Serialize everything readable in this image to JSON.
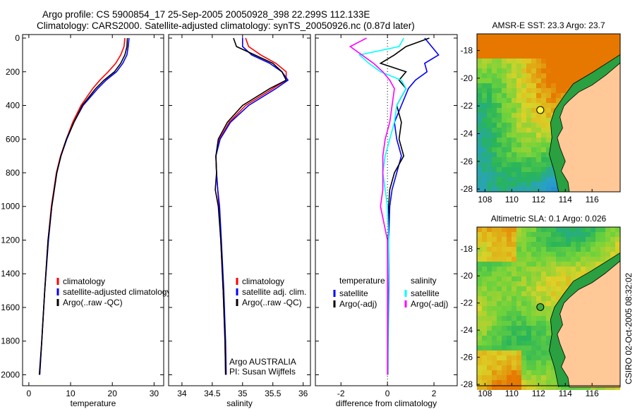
{
  "title_line1": "Argo profile: CS 5900854_17 25-Sep-2005 20050928_398 22.299S 112.133E",
  "title_line2": "Climatology: CARS2000. Satellite-adjusted climatology: synTS_20050926.nc (0.87d later)",
  "side_label": "CSIRO 02-Oct-2005 08:32:02",
  "colors": {
    "climatology": "#ff0000",
    "satellite": "#0000ff",
    "argo": "#000000",
    "sal_sat": "#00ffff",
    "sal_argo": "#ff00ff",
    "land": "#ffc896"
  },
  "chart_data": [
    {
      "type": "line",
      "id": "temperature",
      "xlabel": "temperature",
      "xlim": [
        -1.5,
        32.3
      ],
      "ylim": [
        2065,
        -21
      ],
      "xticks": [
        0,
        10,
        20,
        30
      ],
      "yticks": [
        0,
        200,
        400,
        600,
        800,
        1000,
        1200,
        1400,
        1600,
        1800,
        2000
      ],
      "legend": [
        "climatology",
        "satellite-adjusted climatology",
        "Argo(..raw -QC)"
      ],
      "legend_position": "lower-right",
      "depth": [
        0,
        50,
        100,
        150,
        200,
        250,
        300,
        400,
        500,
        600,
        700,
        800,
        1000,
        1200,
        1500,
        1800,
        2000
      ],
      "series": [
        {
          "name": "climatology",
          "color": "#ff0000",
          "values": [
            23.0,
            22.8,
            22.0,
            20.8,
            19.0,
            17.0,
            15.3,
            12.5,
            10.5,
            9.0,
            7.6,
            6.6,
            5.4,
            4.6,
            3.8,
            3.1,
            2.6
          ]
        },
        {
          "name": "satellite-adjusted climatology",
          "color": "#0000ff",
          "values": [
            24.0,
            23.8,
            23.5,
            22.5,
            21.0,
            18.5,
            16.5,
            13.0,
            10.8,
            9.1,
            7.7,
            6.7,
            5.5,
            4.7,
            3.8,
            3.1,
            2.6
          ]
        },
        {
          "name": "Argo(..raw -QC)",
          "color": "#000000",
          "values": [
            23.6,
            23.5,
            23.0,
            22.0,
            20.5,
            18.0,
            16.0,
            12.8,
            10.8,
            9.0,
            7.7,
            6.7,
            5.5,
            4.6,
            3.8,
            3.1,
            2.5
          ]
        }
      ]
    },
    {
      "type": "line",
      "id": "salinity",
      "xlabel": "salinity",
      "xlim": [
        33.78,
        36.12
      ],
      "ylim": [
        2065,
        -21
      ],
      "xticks": [
        34,
        34.5,
        35,
        35.5,
        36
      ],
      "yticks": [
        0,
        200,
        400,
        600,
        800,
        1000,
        1200,
        1400,
        1600,
        1800,
        2000
      ],
      "legend": [
        "climatology",
        "satellite adj. clim.",
        "Argo(..raw -QC)"
      ],
      "legend_position": "lower-right",
      "annotation": [
        "Argo AUSTRALIA",
        "PI: Susan Wijffels"
      ],
      "depth": [
        0,
        50,
        100,
        150,
        200,
        250,
        300,
        400,
        500,
        600,
        700,
        800,
        900,
        1000,
        1200,
        1500,
        1800,
        2000
      ],
      "series": [
        {
          "name": "climatology",
          "color": "#ff0000",
          "values": [
            35.05,
            35.1,
            35.3,
            35.55,
            35.72,
            35.72,
            35.5,
            35.05,
            34.78,
            34.62,
            34.56,
            34.57,
            34.59,
            34.61,
            34.64,
            34.68,
            34.71,
            34.72
          ]
        },
        {
          "name": "satellite adj. clim.",
          "color": "#0000ff",
          "values": [
            35.0,
            35.0,
            35.15,
            35.45,
            35.65,
            35.75,
            35.55,
            35.1,
            34.8,
            34.63,
            34.56,
            34.57,
            34.59,
            34.62,
            34.65,
            34.69,
            34.72,
            34.73
          ]
        },
        {
          "name": "Argo(..raw -QC)",
          "color": "#000000",
          "values": [
            34.85,
            34.9,
            35.2,
            35.5,
            35.65,
            35.72,
            35.45,
            35.0,
            34.75,
            34.6,
            34.56,
            34.57,
            34.55,
            34.6,
            34.64,
            34.68,
            34.71,
            34.72
          ]
        }
      ]
    },
    {
      "type": "line",
      "id": "difference",
      "xlabel": "difference from climatology",
      "xlim": [
        -3.1,
        3.0
      ],
      "ylim": [
        2065,
        -21
      ],
      "xticks": [
        -2,
        0,
        2
      ],
      "yticks": [
        0,
        200,
        400,
        600,
        800,
        1000,
        1200,
        1400,
        1600,
        1800,
        2000
      ],
      "legend": {
        "temperature_header": "temperature",
        "salinity_header": "salinity",
        "items": [
          "satellite",
          "Argo(-adj)",
          "satellite",
          "Argo(-adj)"
        ]
      },
      "depth": [
        0,
        50,
        100,
        150,
        200,
        250,
        300,
        400,
        500,
        600,
        700,
        800,
        900,
        1000,
        1200,
        1500,
        1800,
        2000
      ],
      "series": [
        {
          "name": "temperature satellite",
          "color": "#0000ff",
          "values": [
            1.6,
            1.9,
            2.2,
            1.6,
            1.7,
            1.2,
            0.9,
            0.6,
            0.3,
            0.4,
            0.6,
            0.4,
            0.2,
            0.1,
            0.05,
            0.05,
            0.03,
            0.02
          ]
        },
        {
          "name": "temperature Argo(-adj)",
          "color": "#000000",
          "values": [
            1.8,
            0.8,
            0.3,
            -0.3,
            0.8,
            0.5,
            0.8,
            0.4,
            0.6,
            0.5,
            0.7,
            0.3,
            0.1,
            0.05,
            0.03,
            0.02,
            0.02,
            0.01
          ]
        },
        {
          "name": "salinity satellite",
          "color": "#00ffff",
          "values": [
            0.7,
            0.5,
            -1.2,
            -0.8,
            -0.3,
            0.6,
            0.8,
            0.4,
            0.3,
            0.1,
            -0.1,
            -0.2,
            -0.1,
            0.0,
            0.05,
            0.02,
            0.02,
            0.01
          ]
        },
        {
          "name": "salinity Argo(-adj)",
          "color": "#ff00ff",
          "values": [
            -0.9,
            -1.6,
            -1.1,
            -0.6,
            -0.2,
            0.1,
            0.3,
            0.2,
            0.1,
            -0.1,
            -0.2,
            -0.2,
            -0.2,
            -0.3,
            0.0,
            0.0,
            0.0,
            0.0
          ]
        }
      ]
    },
    {
      "type": "heatmap",
      "id": "sst",
      "title": "AMSR-E SST: 23.3 Argo: 23.7",
      "xlim": [
        107.4,
        118.1
      ],
      "ylim": [
        -28.2,
        -16.8
      ],
      "xticks": [
        108,
        110,
        112,
        114,
        116
      ],
      "yticks": [
        -18,
        -20,
        -22,
        -24,
        -26,
        -28
      ],
      "argo_position": [
        112.133,
        -22.299
      ]
    },
    {
      "type": "heatmap",
      "id": "sla",
      "title": "Altimetric SLA: 0.1 Argo: 0.026",
      "xlim": [
        107.4,
        118.1
      ],
      "ylim": [
        -28.1,
        -16.4
      ],
      "xticks": [
        108,
        110,
        112,
        114,
        116
      ],
      "yticks": [
        -18,
        -20,
        -22,
        -24,
        -26,
        -28
      ],
      "argo_position": [
        112.133,
        -22.299
      ]
    }
  ]
}
